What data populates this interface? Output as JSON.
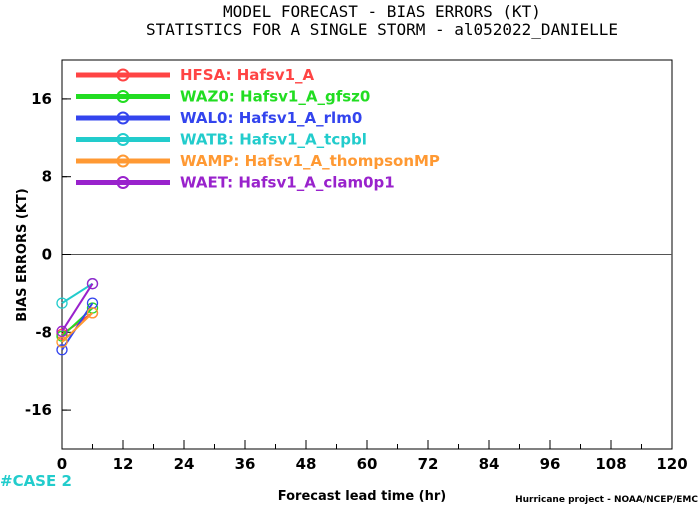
{
  "chart_data": {
    "type": "line",
    "title": "MODEL FORECAST - BIAS ERRORS (KT)",
    "subtitle": "STATISTICS FOR A SINGLE STORM - al052022_DANIELLE",
    "xlabel": "Forecast lead time (hr)",
    "ylabel": "BIAS ERRORS (KT)",
    "xlim": [
      0,
      120
    ],
    "ylim": [
      -20,
      20
    ],
    "xticks": [
      "0",
      "12",
      "24",
      "36",
      "48",
      "60",
      "72",
      "84",
      "96",
      "108",
      "120"
    ],
    "yticks": [
      "16",
      "8",
      "0",
      "-8",
      "-16"
    ],
    "grid": false,
    "legend_position": "top-left",
    "series": [
      {
        "name": "HFSA: Hafsv1_A",
        "color": "#ff4444",
        "x": [
          0,
          6
        ],
        "y": [
          -8.2,
          -6.0
        ]
      },
      {
        "name": "WAZ0: Hafsv1_A_gfsz0",
        "color": "#22dd22",
        "x": [
          0,
          6
        ],
        "y": [
          -8.4,
          -5.5
        ]
      },
      {
        "name": "WAL0: Hafsv1_A_rlm0",
        "color": "#3344ee",
        "x": [
          0,
          6
        ],
        "y": [
          -9.8,
          -5.0
        ]
      },
      {
        "name": "WATB: Hafsv1_A_tcpbl",
        "color": "#22cccc",
        "x": [
          0,
          6
        ],
        "y": [
          -5.0,
          -3.0
        ]
      },
      {
        "name": "WAMP: Hafsv1_A_thompsonMP",
        "color": "#ff9933",
        "x": [
          0,
          6
        ],
        "y": [
          -9.0,
          -6.0
        ]
      },
      {
        "name": "WAET: Hafsv1_A_clam0p1",
        "color": "#9922cc",
        "x": [
          0,
          6
        ],
        "y": [
          -7.9,
          -3.0
        ]
      }
    ],
    "case_label": "#CASE 2",
    "case_color": "#22cccc",
    "footer": "Hurricane project - NOAA/NCEP/EMC"
  }
}
